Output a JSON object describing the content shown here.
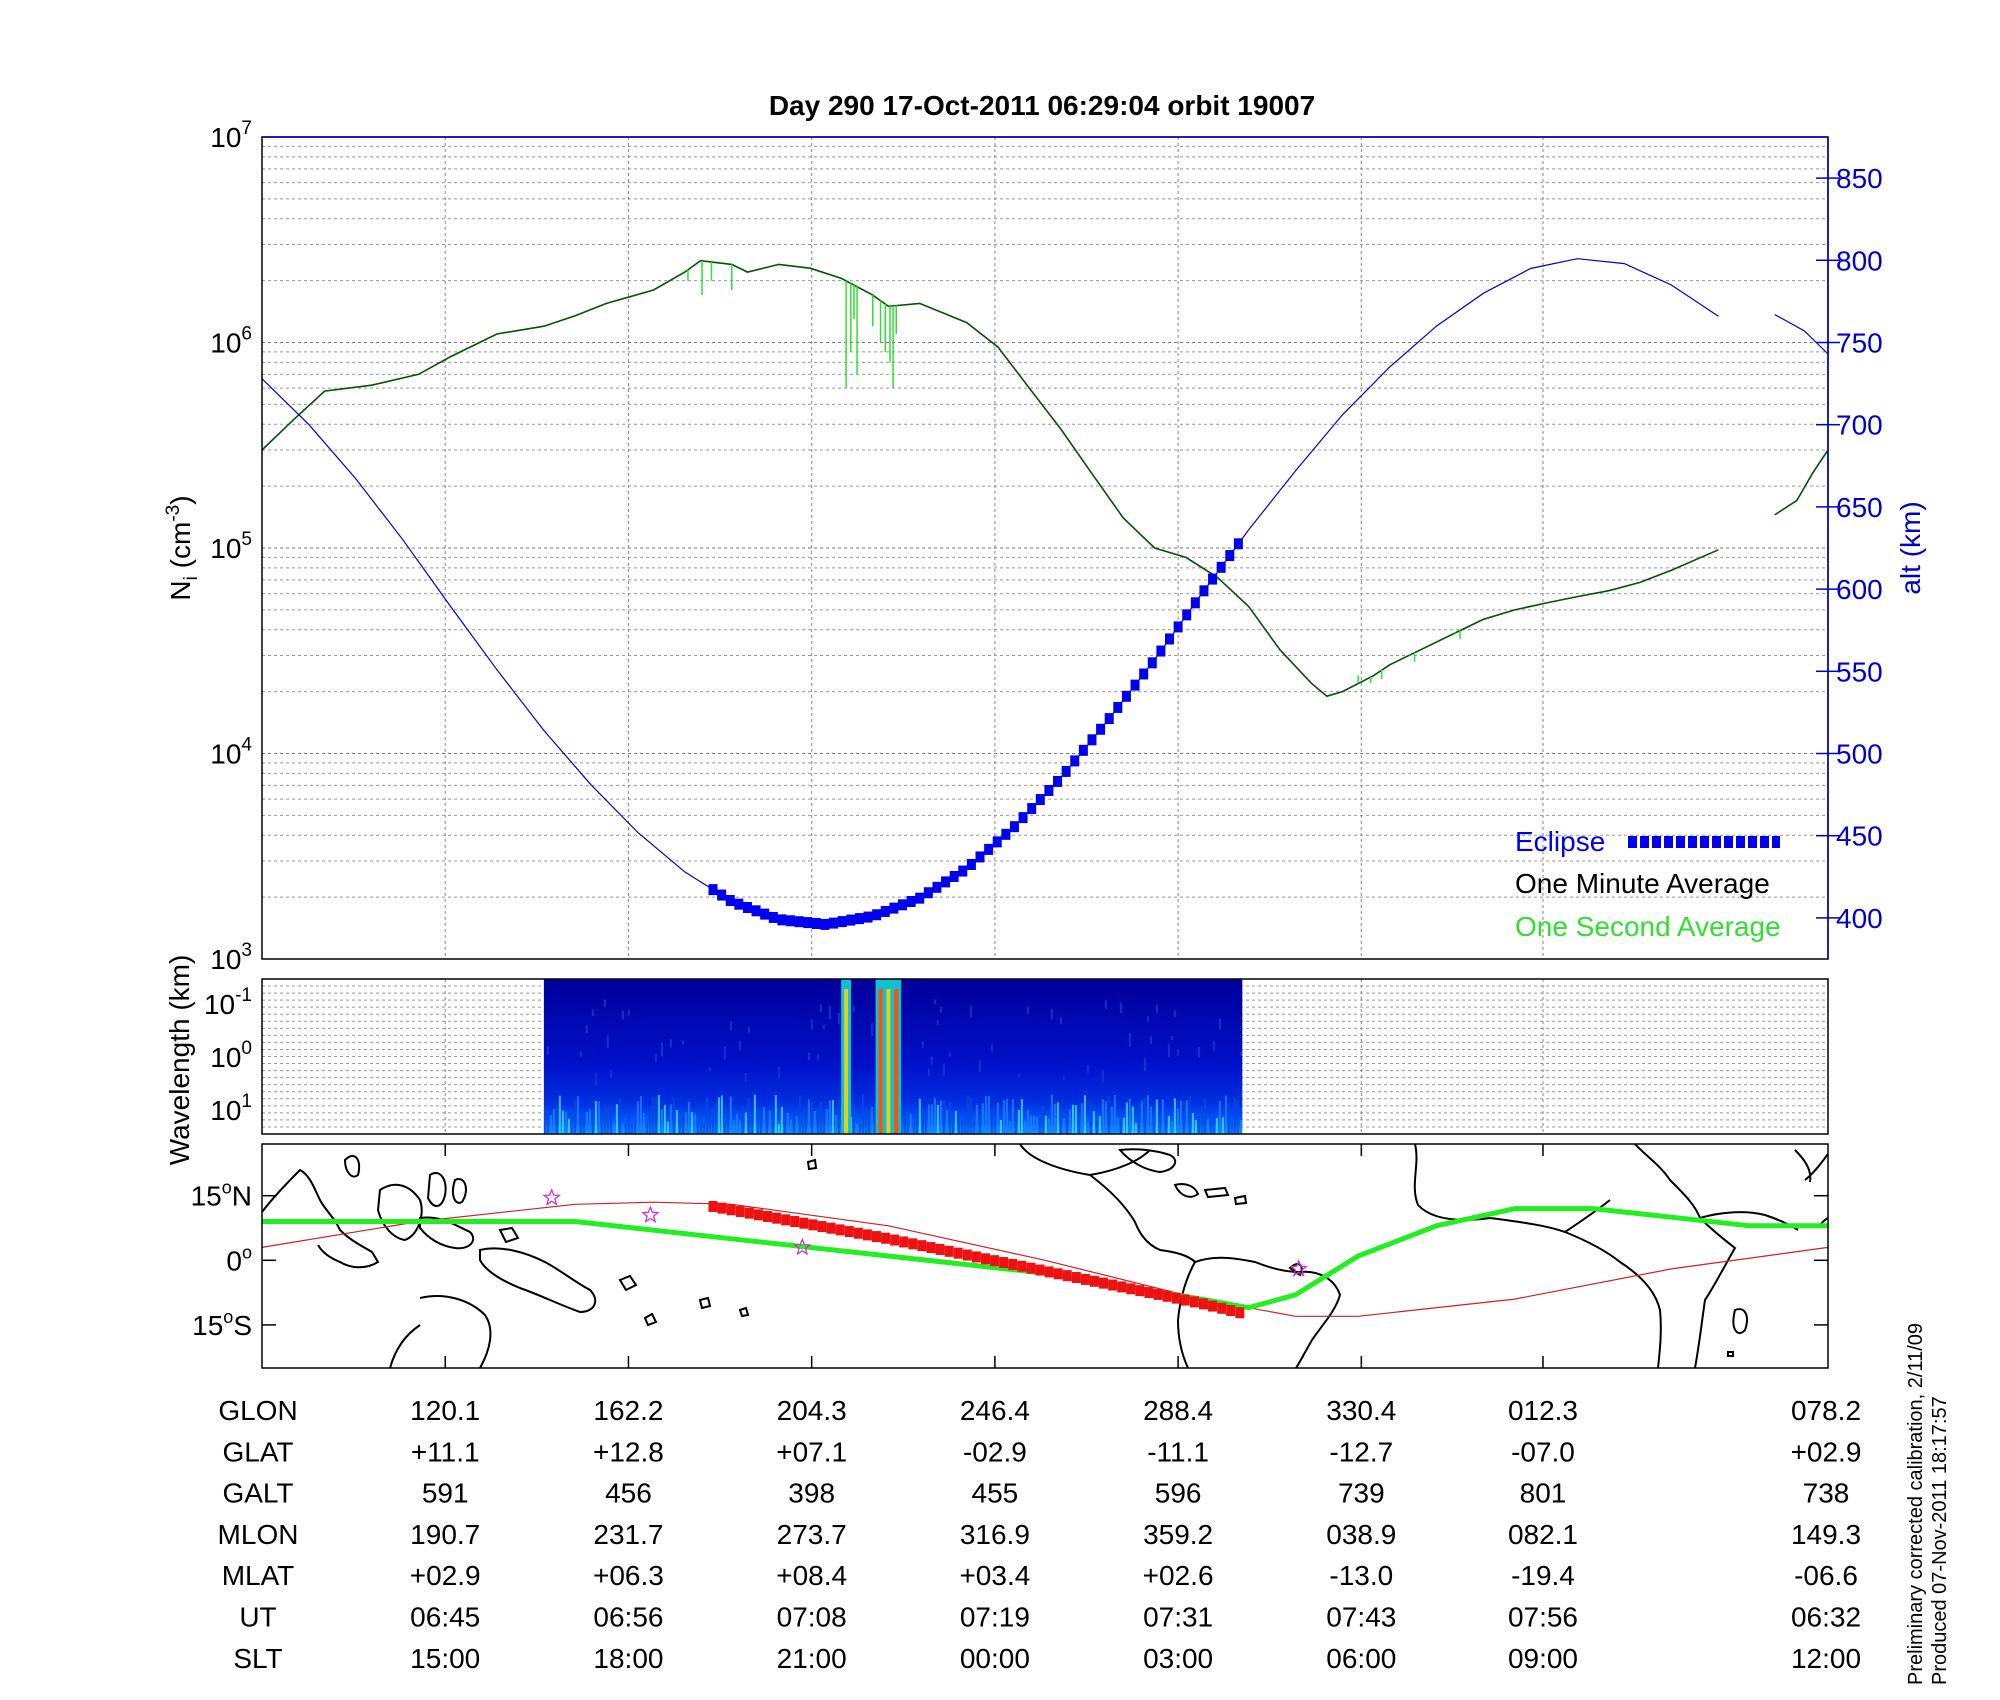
{
  "title": "Day 290  17-Oct-2011 06:29:04   orbit 19007",
  "side_note": [
    "Preliminary corrected calibration, 2/11/09",
    "Produced 07-Nov-2011 18:17:57"
  ],
  "colors": {
    "altitude": "#0000cc",
    "eclipse": "#0000ee",
    "minute_avg": "#005500",
    "second_avg": "#33dd33",
    "ground_track": "#22ee22",
    "magnetic_track": "#cc2222",
    "eclipse_track": "#ee1111",
    "star": "#cc33cc"
  },
  "chart_data": [
    {
      "type": "line",
      "name": "ion-density-and-altitude",
      "ylabel_left": "N_i (cm^-3)",
      "ylabel_left_main": "N",
      "ylabel_left_sub": "i",
      "ylabel_left_rest": " (cm",
      "ylabel_left_sup": "-3",
      "ylabel_left_close": ")",
      "ylabel_right": "alt (km)",
      "y_left_scale": "log",
      "y_left_range": [
        1000,
        10000000
      ],
      "y_left_ticks": [
        {
          "base": "10",
          "exp": "3",
          "value": 1000
        },
        {
          "base": "10",
          "exp": "4",
          "value": 10000
        },
        {
          "base": "10",
          "exp": "5",
          "value": 100000
        },
        {
          "base": "10",
          "exp": "6",
          "value": 1000000
        },
        {
          "base": "10",
          "exp": "7",
          "value": 10000000
        }
      ],
      "y_right_range": [
        375,
        875
      ],
      "y_right_ticks": [
        "400",
        "450",
        "500",
        "550",
        "600",
        "650",
        "700",
        "750",
        "800",
        "850"
      ],
      "x_units": "fraction of orbit",
      "grid": true,
      "legend_position": "bottom-right",
      "legend": {
        "eclipse": "Eclipse",
        "minute": "One Minute Average",
        "second": "One Second Average"
      },
      "series": [
        {
          "name": "alt (km)",
          "axis": "right",
          "points": [
            [
              0,
              728
            ],
            [
              0.03,
              700
            ],
            [
              0.06,
              667
            ],
            [
              0.09,
              630
            ],
            [
              0.12,
              590
            ],
            [
              0.15,
              551
            ],
            [
              0.18,
              514
            ],
            [
              0.21,
              481
            ],
            [
              0.24,
              452
            ],
            [
              0.27,
              428
            ],
            [
              0.3,
              410
            ],
            [
              0.33,
              399
            ],
            [
              0.36,
              396
            ],
            [
              0.39,
              401
            ],
            [
              0.42,
              412
            ],
            [
              0.45,
              430
            ],
            [
              0.48,
              455
            ],
            [
              0.51,
              485
            ],
            [
              0.54,
              520
            ],
            [
              0.57,
              557
            ],
            [
              0.6,
              597
            ],
            [
              0.63,
              636
            ],
            [
              0.66,
              672
            ],
            [
              0.69,
              706
            ],
            [
              0.72,
              735
            ],
            [
              0.75,
              760
            ],
            [
              0.78,
              780
            ],
            [
              0.81,
              795
            ],
            [
              0.84,
              801
            ],
            [
              0.87,
              798
            ],
            [
              0.9,
              785
            ],
            [
              0.93,
              766
            ]
          ],
          "segment2": [
            [
              0.966,
              767
            ],
            [
              0.985,
              757
            ],
            [
              1,
              743
            ]
          ]
        },
        {
          "name": "One Minute Average",
          "axis": "left",
          "points": [
            [
              0,
              300000
            ],
            [
              0.02,
              420000
            ],
            [
              0.04,
              580000
            ],
            [
              0.07,
              620000
            ],
            [
              0.1,
              700000
            ],
            [
              0.12,
              850000
            ],
            [
              0.15,
              1100000
            ],
            [
              0.18,
              1200000
            ],
            [
              0.2,
              1350000
            ],
            [
              0.22,
              1550000
            ],
            [
              0.25,
              1800000
            ],
            [
              0.27,
              2200000
            ],
            [
              0.28,
              2500000
            ],
            [
              0.3,
              2400000
            ],
            [
              0.31,
              2200000
            ],
            [
              0.33,
              2400000
            ],
            [
              0.35,
              2300000
            ],
            [
              0.37,
              2050000
            ],
            [
              0.39,
              1700000
            ],
            [
              0.4,
              1500000
            ],
            [
              0.42,
              1550000
            ],
            [
              0.45,
              1250000
            ],
            [
              0.47,
              950000
            ],
            [
              0.49,
              600000
            ],
            [
              0.51,
              380000
            ],
            [
              0.53,
              230000
            ],
            [
              0.55,
              140000
            ],
            [
              0.57,
              100000
            ],
            [
              0.59,
              90000
            ],
            [
              0.61,
              72000
            ],
            [
              0.63,
              52000
            ],
            [
              0.65,
              32000
            ],
            [
              0.67,
              22000
            ],
            [
              0.68,
              19000
            ],
            [
              0.69,
              20000
            ],
            [
              0.71,
              24000
            ],
            [
              0.72,
              27000
            ],
            [
              0.74,
              32000
            ],
            [
              0.76,
              38000
            ],
            [
              0.78,
              45000
            ],
            [
              0.8,
              50000
            ],
            [
              0.82,
              54000
            ],
            [
              0.84,
              58000
            ],
            [
              0.86,
              62000
            ],
            [
              0.88,
              68000
            ],
            [
              0.9,
              78000
            ],
            [
              0.93,
              98000
            ]
          ],
          "segment2": [
            [
              0.966,
              145000
            ],
            [
              0.98,
              170000
            ],
            [
              0.99,
              230000
            ],
            [
              1,
              300000
            ]
          ]
        },
        {
          "name": "One Second Average",
          "axis": "left",
          "spikes": [
            [
              0.272,
              2000000
            ],
            [
              0.281,
              1700000
            ],
            [
              0.287,
              2000000
            ],
            [
              0.3,
              1800000
            ],
            [
              0.373,
              600000
            ],
            [
              0.376,
              900000
            ],
            [
              0.378,
              1300000
            ],
            [
              0.38,
              700000
            ],
            [
              0.39,
              1200000
            ],
            [
              0.395,
              1000000
            ],
            [
              0.398,
              900000
            ],
            [
              0.401,
              800000
            ],
            [
              0.403,
              600000
            ],
            [
              0.405,
              1100000
            ],
            [
              0.7,
              24000
            ],
            [
              0.708,
              22000
            ],
            [
              0.715,
              23000
            ],
            [
              0.72,
              27000
            ],
            [
              0.733,
              30000
            ],
            [
              0.736,
              28000
            ],
            [
              0.74,
              32000
            ],
            [
              0.762,
              38000
            ],
            [
              0.765,
              36000
            ]
          ]
        }
      ],
      "eclipse_range": [
        0.288,
        0.628
      ]
    },
    {
      "type": "heatmap",
      "name": "wavelength-spectrogram",
      "ylabel": "Wavelength (km)",
      "y_ticks": [
        {
          "base": "10",
          "exp": "-1"
        },
        {
          "base": "10",
          "exp": "0"
        },
        {
          "base": "10",
          "exp": "1"
        }
      ],
      "data_range": [
        0.18,
        0.626
      ],
      "hot_bands": [
        0.373,
        0.395,
        0.4,
        0.405
      ]
    },
    {
      "type": "line",
      "name": "ground-track-map",
      "ylabels": [
        {
          "deg": "15",
          "hemi": "N",
          "value": 15
        },
        {
          "deg": "0",
          "hemi": "",
          "value": 0
        },
        {
          "deg": "15",
          "hemi": "S",
          "value": -15
        }
      ],
      "y_range": [
        -25,
        27
      ],
      "series": [
        {
          "name": "ground track",
          "points": [
            [
              0,
              9
            ],
            [
              0.1,
              9
            ],
            [
              0.2,
              9
            ],
            [
              0.3,
              5
            ],
            [
              0.4,
              1
            ],
            [
              0.5,
              -3
            ],
            [
              0.6,
              -9
            ],
            [
              0.63,
              -11
            ],
            [
              0.66,
              -8
            ],
            [
              0.7,
              1
            ],
            [
              0.75,
              8
            ],
            [
              0.8,
              12
            ],
            [
              0.85,
              12
            ],
            [
              0.9,
              10
            ],
            [
              0.95,
              8
            ],
            [
              1,
              8
            ]
          ]
        },
        {
          "name": "magnetic equator",
          "points": [
            [
              0,
              3
            ],
            [
              0.1,
              9
            ],
            [
              0.2,
              13
            ],
            [
              0.25,
              13.5
            ],
            [
              0.3,
              13
            ],
            [
              0.4,
              8
            ],
            [
              0.5,
              0
            ],
            [
              0.6,
              -9
            ],
            [
              0.66,
              -13
            ],
            [
              0.7,
              -13
            ],
            [
              0.8,
              -9
            ],
            [
              0.9,
              -2
            ],
            [
              1,
              3
            ]
          ]
        },
        {
          "name": "eclipse track",
          "points": [
            [
              0.288,
              12.5
            ],
            [
              0.4,
              5
            ],
            [
              0.5,
              -2.5
            ],
            [
              0.6,
              -10
            ],
            [
              0.628,
              -12.5
            ]
          ]
        }
      ],
      "stars": [
        [
          0.185,
          14.5
        ],
        [
          0.248,
          10.5
        ],
        [
          0.345,
          3
        ],
        [
          0.662,
          -2
        ]
      ]
    }
  ],
  "table": {
    "x_positions": [
      0,
      0.117,
      0.234,
      0.351,
      0.468,
      0.585,
      0.702,
      0.818,
      1.0
    ],
    "rows": [
      {
        "label": "GLON",
        "values": [
          "120.1",
          "162.2",
          "204.3",
          "246.4",
          "288.4",
          "330.4",
          "012.3",
          "078.2"
        ]
      },
      {
        "label": "GLAT",
        "values": [
          "+11.1",
          "+12.8",
          "+07.1",
          "-02.9",
          "-11.1",
          "-12.7",
          "-07.0",
          "+02.9"
        ]
      },
      {
        "label": "GALT",
        "values": [
          "591",
          "456",
          "398",
          "455",
          "596",
          "739",
          "801",
          "738"
        ]
      },
      {
        "label": "MLON",
        "values": [
          "190.7",
          "231.7",
          "273.7",
          "316.9",
          "359.2",
          "038.9",
          "082.1",
          "149.3"
        ]
      },
      {
        "label": "MLAT",
        "values": [
          "+02.9",
          "+06.3",
          "+08.4",
          "+03.4",
          "+02.6",
          "-13.0",
          "-19.4",
          "-06.6"
        ]
      },
      {
        "label": "UT",
        "values": [
          "06:45",
          "06:56",
          "07:08",
          "07:19",
          "07:31",
          "07:43",
          "07:56",
          "06:32"
        ]
      },
      {
        "label": "SLT",
        "values": [
          "15:00",
          "18:00",
          "21:00",
          "00:00",
          "03:00",
          "06:00",
          "09:00",
          "12:00"
        ]
      }
    ]
  }
}
